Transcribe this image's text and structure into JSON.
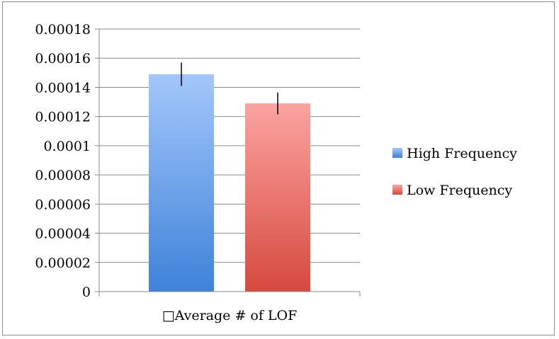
{
  "chart_data": {
    "type": "bar",
    "categories": [
      "□Average # of LOF"
    ],
    "series": [
      {
        "name": "High Frequency",
        "values": [
          0.000149
        ],
        "error": [
          8e-06
        ],
        "color": "#6ea8f0"
      },
      {
        "name": "Low Frequency",
        "values": [
          0.000129
        ],
        "error": [
          7.5e-06
        ],
        "color": "#f08a80"
      }
    ],
    "ylim": [
      0,
      0.00018
    ],
    "yticks": [
      "0",
      "0.00002",
      "0.00004",
      "0.00006",
      "0.00008",
      "0.0001",
      "0.00012",
      "0.00014",
      "0.00016",
      "0.00018"
    ],
    "ytick_values": [
      0,
      2e-05,
      4e-05,
      6e-05,
      8e-05,
      0.0001,
      0.00012,
      0.00014,
      0.00016,
      0.00018
    ],
    "grid": true,
    "legend": "right"
  }
}
